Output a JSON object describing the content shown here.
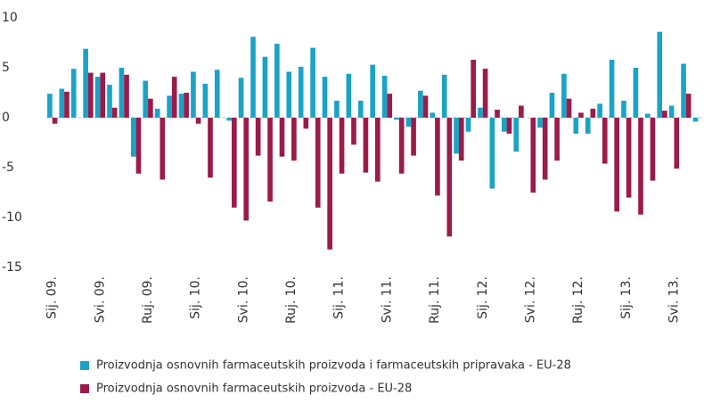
{
  "chart_data": {
    "type": "bar",
    "categories": [
      "Sij. 09.",
      null,
      null,
      null,
      "Svi. 09.",
      null,
      null,
      null,
      "Ruj. 09.",
      null,
      null,
      null,
      "Sij. 10.",
      null,
      null,
      null,
      "Svi. 10.",
      null,
      null,
      null,
      "Ruj. 10.",
      null,
      null,
      null,
      "Sij. 11.",
      null,
      null,
      null,
      "Svi. 11.",
      null,
      null,
      null,
      "Ruj. 11.",
      null,
      null,
      null,
      "Sij. 12.",
      null,
      null,
      null,
      "Svi. 12.",
      null,
      null,
      null,
      "Ruj. 12.",
      null,
      null,
      null,
      "Sij. 13.",
      null,
      null,
      null,
      "Svi. 13.",
      null,
      null
    ],
    "series": [
      {
        "name": "Proizvodnja osnovnih farmaceutskih proizvoda i farmaceutskih pripravaka - EU-28",
        "color": "#1ba3c6",
        "values": [
          2.4,
          2.9,
          4.9,
          6.9,
          4.1,
          3.3,
          5.0,
          -3.9,
          3.7,
          0.9,
          2.2,
          2.4,
          4.6,
          3.4,
          4.8,
          -0.3,
          4.0,
          8.1,
          6.1,
          7.4,
          4.6,
          5.1,
          7.0,
          4.1,
          1.7,
          4.4,
          1.7,
          5.3,
          4.2,
          -0.2,
          -0.9,
          2.7,
          0.5,
          4.3,
          -3.6,
          -1.4,
          1.0,
          -7.1,
          -1.4,
          -3.4,
          0,
          -1.0,
          2.5,
          4.4,
          -1.6,
          -1.6,
          1.4,
          5.8,
          1.7,
          5.0,
          0.4,
          8.6,
          1.2,
          5.4,
          -0.4
        ]
      },
      {
        "name": "Proizvodnja osnovnih farmaceutskih proizvoda - EU-28",
        "color": "#9b1b4a",
        "values": [
          -0.6,
          2.6,
          0,
          4.5,
          4.5,
          1.0,
          4.3,
          -5.6,
          1.9,
          -6.2,
          4.1,
          2.5,
          -0.6,
          -6.0,
          0,
          -9.0,
          -10.3,
          -3.8,
          -8.4,
          -3.9,
          -4.3,
          -1.1,
          -9.0,
          -13.2,
          -5.6,
          -2.7,
          -5.5,
          -6.4,
          2.4,
          -5.6,
          -3.8,
          2.2,
          -7.8,
          -11.9,
          -4.3,
          5.8,
          4.9,
          0.8,
          -1.6,
          1.2,
          -7.5,
          -6.2,
          -4.3,
          1.9,
          0.5,
          0.9,
          -4.6,
          -9.4,
          -8.0,
          -9.7,
          -6.3,
          0.7,
          -5.1,
          2.4,
          0
        ]
      }
    ],
    "ylim": [
      -15,
      10
    ],
    "yticks": [
      -15,
      -10,
      -5,
      0,
      5,
      10
    ],
    "grid": false,
    "legend": "bottom"
  }
}
